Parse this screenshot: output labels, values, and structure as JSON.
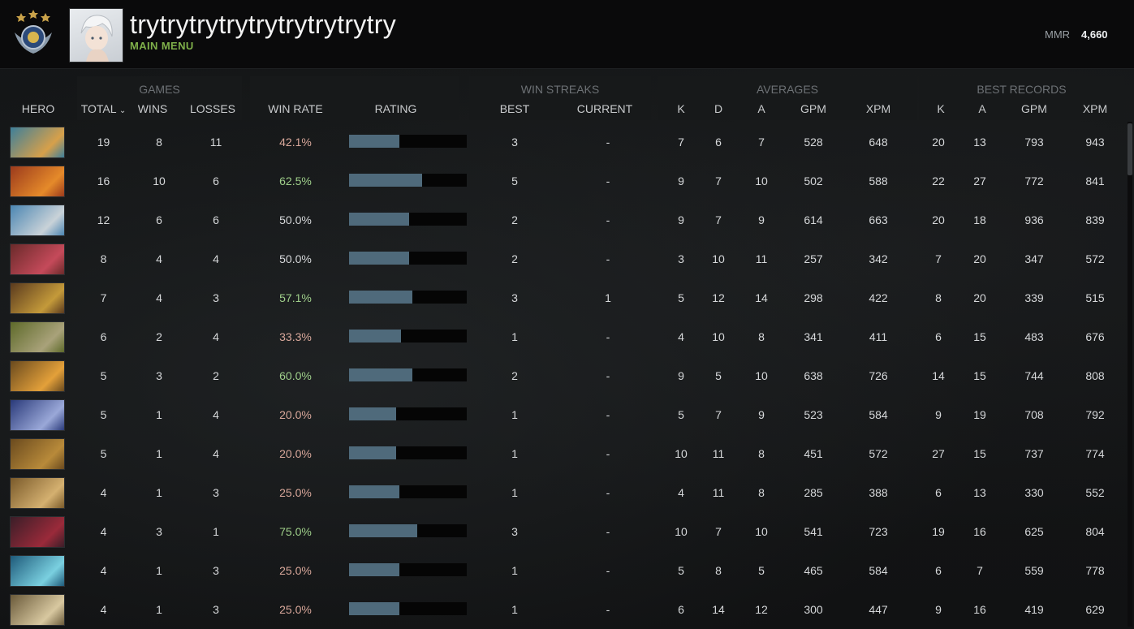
{
  "header": {
    "username": "trytrytrytrytrytrytrytrytry",
    "menu_link": "MAIN MENU",
    "mmr_label": "MMR",
    "mmr_value": "4,660"
  },
  "columns": {
    "groups": {
      "games": "GAMES",
      "win_streaks": "WIN STREAKS",
      "averages": "AVERAGES",
      "best_records": "BEST RECORDS"
    },
    "hero": "HERO",
    "total": "TOTAL",
    "wins": "WINS",
    "losses": "LOSSES",
    "win_rate": "WIN RATE",
    "rating": "RATING",
    "best": "BEST",
    "current": "CURRENT",
    "avg_k": "K",
    "avg_d": "D",
    "avg_a": "A",
    "avg_gpm": "GPM",
    "avg_xpm": "XPM",
    "best_k": "K",
    "best_a": "A",
    "best_gpm": "GPM",
    "best_xpm": "XPM"
  },
  "rows": [
    {
      "hero_icon": "hero-portrait-icon",
      "total": "19",
      "wins": "8",
      "losses": "11",
      "win_rate": "42.1%",
      "rating": 0.43,
      "best": "3",
      "current": "-",
      "k": "7",
      "d": "6",
      "a": "7",
      "gpm": "528",
      "xpm": "648",
      "bk": "20",
      "ba": "13",
      "bgpm": "793",
      "bxpm": "943"
    },
    {
      "hero_icon": "hero-portrait-icon",
      "total": "16",
      "wins": "10",
      "losses": "6",
      "win_rate": "62.5%",
      "rating": 0.62,
      "best": "5",
      "current": "-",
      "k": "9",
      "d": "7",
      "a": "10",
      "gpm": "502",
      "xpm": "588",
      "bk": "22",
      "ba": "27",
      "bgpm": "772",
      "bxpm": "841"
    },
    {
      "hero_icon": "hero-portrait-icon",
      "total": "12",
      "wins": "6",
      "losses": "6",
      "win_rate": "50.0%",
      "rating": 0.51,
      "best": "2",
      "current": "-",
      "k": "9",
      "d": "7",
      "a": "9",
      "gpm": "614",
      "xpm": "663",
      "bk": "20",
      "ba": "18",
      "bgpm": "936",
      "bxpm": "839"
    },
    {
      "hero_icon": "hero-portrait-icon",
      "total": "8",
      "wins": "4",
      "losses": "4",
      "win_rate": "50.0%",
      "rating": 0.51,
      "best": "2",
      "current": "-",
      "k": "3",
      "d": "10",
      "a": "11",
      "gpm": "257",
      "xpm": "342",
      "bk": "7",
      "ba": "20",
      "bgpm": "347",
      "bxpm": "572"
    },
    {
      "hero_icon": "hero-portrait-icon",
      "total": "7",
      "wins": "4",
      "losses": "3",
      "win_rate": "57.1%",
      "rating": 0.54,
      "best": "3",
      "current": "1",
      "k": "5",
      "d": "12",
      "a": "14",
      "gpm": "298",
      "xpm": "422",
      "bk": "8",
      "ba": "20",
      "bgpm": "339",
      "bxpm": "515"
    },
    {
      "hero_icon": "hero-portrait-icon",
      "total": "6",
      "wins": "2",
      "losses": "4",
      "win_rate": "33.3%",
      "rating": 0.44,
      "best": "1",
      "current": "-",
      "k": "4",
      "d": "10",
      "a": "8",
      "gpm": "341",
      "xpm": "411",
      "bk": "6",
      "ba": "15",
      "bgpm": "483",
      "bxpm": "676"
    },
    {
      "hero_icon": "hero-portrait-icon",
      "total": "5",
      "wins": "3",
      "losses": "2",
      "win_rate": "60.0%",
      "rating": 0.54,
      "best": "2",
      "current": "-",
      "k": "9",
      "d": "5",
      "a": "10",
      "gpm": "638",
      "xpm": "726",
      "bk": "14",
      "ba": "15",
      "bgpm": "744",
      "bxpm": "808"
    },
    {
      "hero_icon": "hero-portrait-icon",
      "total": "5",
      "wins": "1",
      "losses": "4",
      "win_rate": "20.0%",
      "rating": 0.4,
      "best": "1",
      "current": "-",
      "k": "5",
      "d": "7",
      "a": "9",
      "gpm": "523",
      "xpm": "584",
      "bk": "9",
      "ba": "19",
      "bgpm": "708",
      "bxpm": "792"
    },
    {
      "hero_icon": "hero-portrait-icon",
      "total": "5",
      "wins": "1",
      "losses": "4",
      "win_rate": "20.0%",
      "rating": 0.4,
      "best": "1",
      "current": "-",
      "k": "10",
      "d": "11",
      "a": "8",
      "gpm": "451",
      "xpm": "572",
      "bk": "27",
      "ba": "15",
      "bgpm": "737",
      "bxpm": "774"
    },
    {
      "hero_icon": "hero-portrait-icon",
      "total": "4",
      "wins": "1",
      "losses": "3",
      "win_rate": "25.0%",
      "rating": 0.43,
      "best": "1",
      "current": "-",
      "k": "4",
      "d": "11",
      "a": "8",
      "gpm": "285",
      "xpm": "388",
      "bk": "6",
      "ba": "13",
      "bgpm": "330",
      "bxpm": "552"
    },
    {
      "hero_icon": "hero-portrait-icon",
      "total": "4",
      "wins": "3",
      "losses": "1",
      "win_rate": "75.0%",
      "rating": 0.58,
      "best": "3",
      "current": "-",
      "k": "10",
      "d": "7",
      "a": "10",
      "gpm": "541",
      "xpm": "723",
      "bk": "19",
      "ba": "16",
      "bgpm": "625",
      "bxpm": "804"
    },
    {
      "hero_icon": "hero-portrait-icon",
      "total": "4",
      "wins": "1",
      "losses": "3",
      "win_rate": "25.0%",
      "rating": 0.43,
      "best": "1",
      "current": "-",
      "k": "5",
      "d": "8",
      "a": "5",
      "gpm": "465",
      "xpm": "584",
      "bk": "6",
      "ba": "7",
      "bgpm": "559",
      "bxpm": "778"
    },
    {
      "hero_icon": "hero-portrait-icon",
      "total": "4",
      "wins": "1",
      "losses": "3",
      "win_rate": "25.0%",
      "rating": 0.43,
      "best": "1",
      "current": "-",
      "k": "6",
      "d": "14",
      "a": "12",
      "gpm": "300",
      "xpm": "447",
      "bk": "9",
      "ba": "16",
      "bgpm": "419",
      "bxpm": "629"
    }
  ],
  "colors": {
    "win_rate_positive": "#9fcf8a",
    "win_rate_negative": "#d9a89b",
    "rating_bar": "#4f6a7b",
    "accent_green": "#7fb04a"
  }
}
